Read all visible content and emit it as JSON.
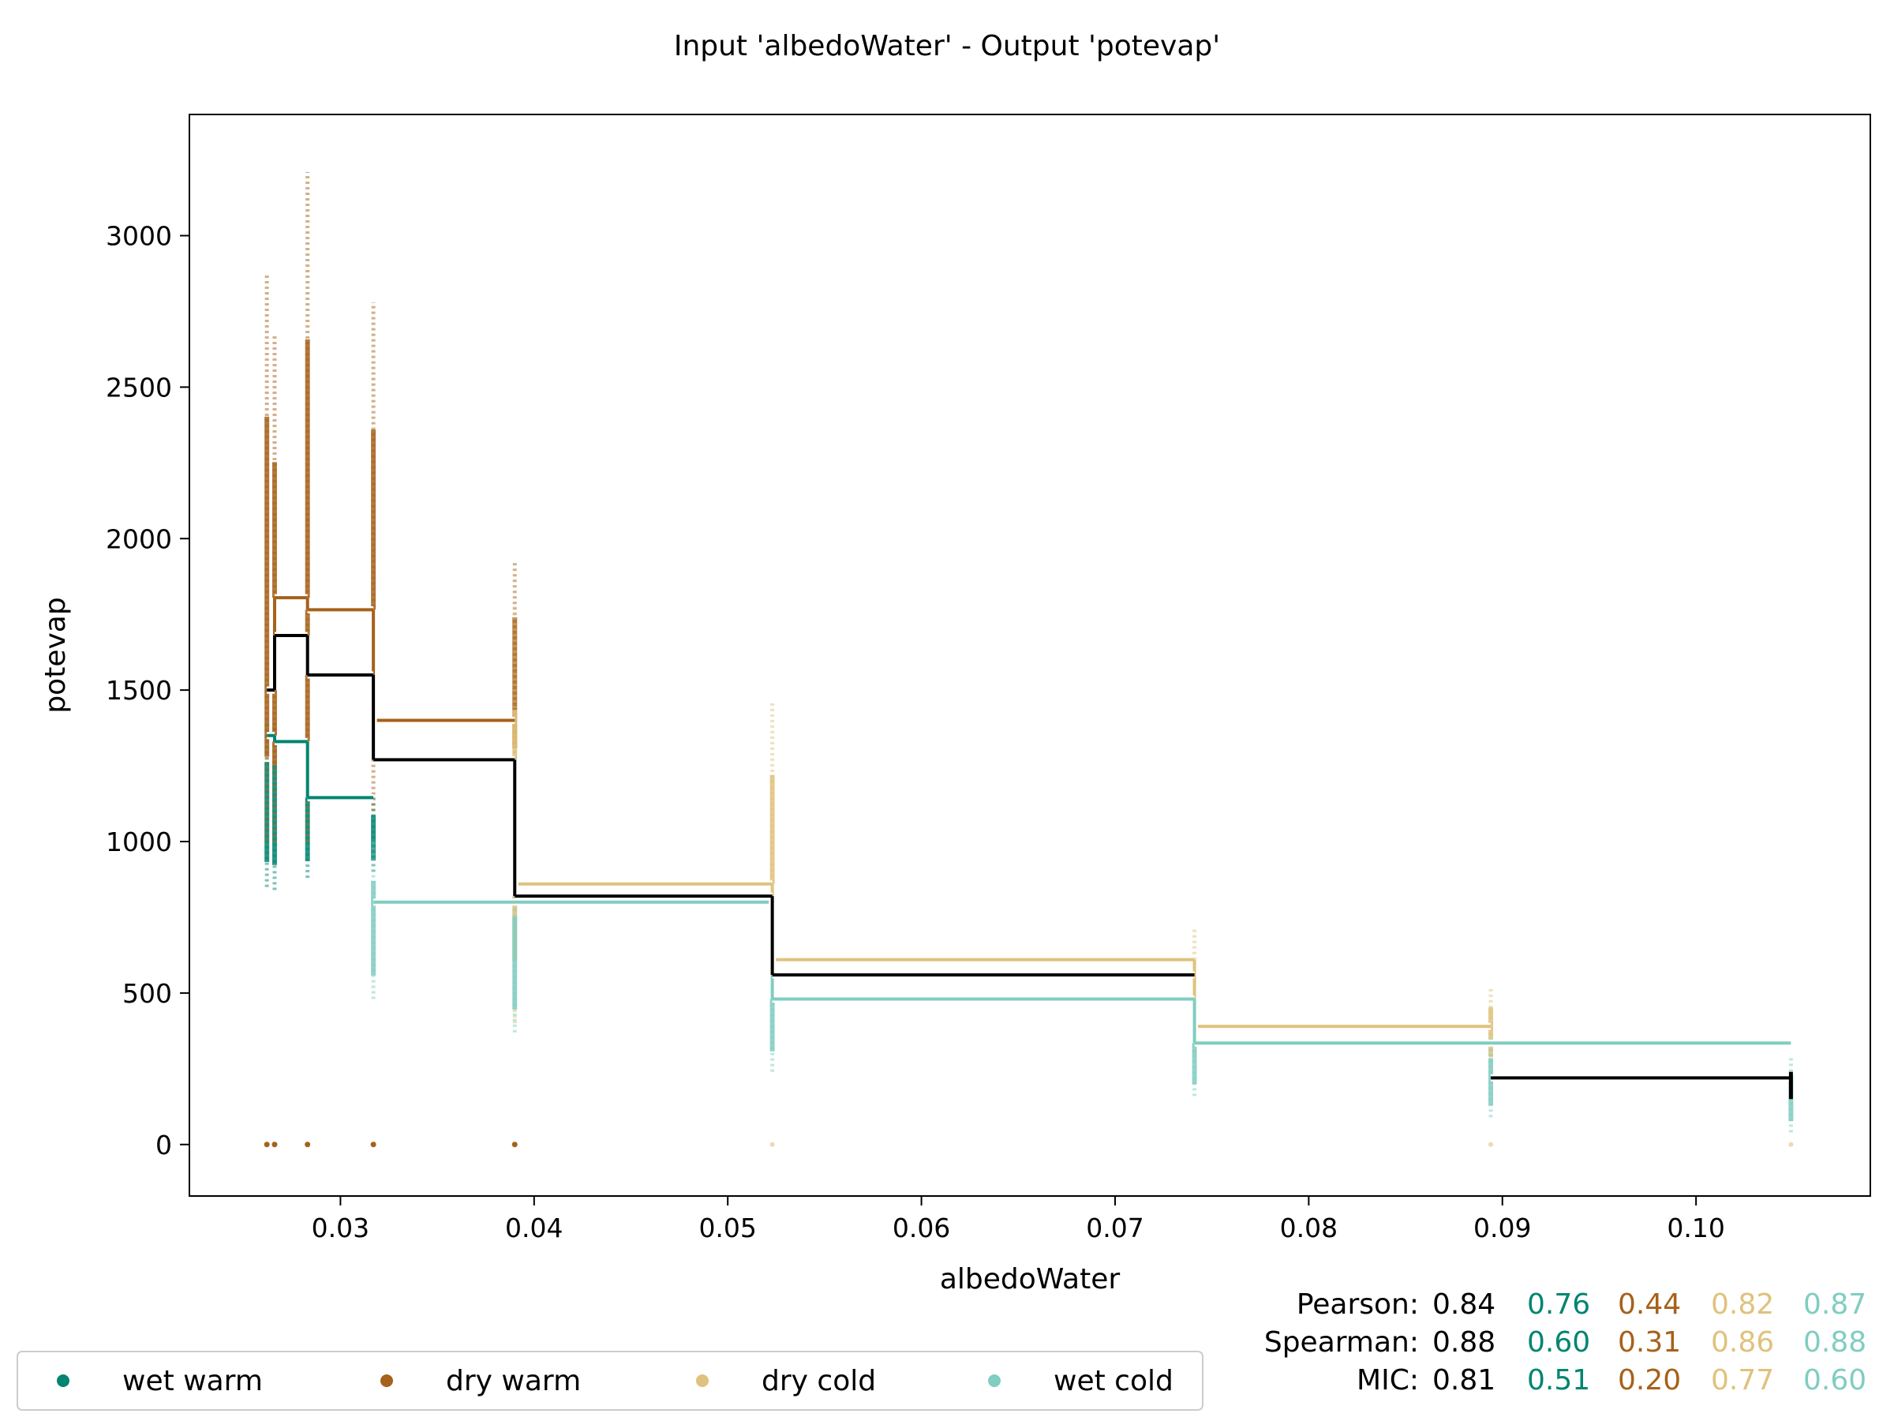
{
  "chart_data": {
    "type": "line",
    "title": "Input 'albedoWater' - Output 'potevap'",
    "xlabel": "albedoWater",
    "ylabel": "potevap",
    "xlim": [
      0.0222,
      0.109
    ],
    "ylim": [
      -170,
      3400
    ],
    "xticks": [
      0.03,
      0.04,
      0.05,
      0.06,
      0.07,
      0.08,
      0.09,
      0.1
    ],
    "xtick_labels": [
      "0.03",
      "0.04",
      "0.05",
      "0.06",
      "0.07",
      "0.08",
      "0.09",
      "0.10"
    ],
    "yticks": [
      0,
      500,
      1000,
      1500,
      2000,
      2500,
      3000
    ],
    "ytick_labels": [
      "0",
      "500",
      "1000",
      "1500",
      "2000",
      "2500",
      "3000"
    ],
    "grid": false,
    "legend_position": "bottom-left",
    "sample_x": [
      0.0262,
      0.0266,
      0.0283,
      0.0317,
      0.039,
      0.0523,
      0.0741,
      0.0894,
      0.1049
    ],
    "steps_all": {
      "x": [
        0.0262,
        0.0266,
        0.0283,
        0.0317,
        0.039,
        0.0523,
        0.0741,
        0.0894,
        0.1049
      ],
      "y": [
        1500,
        1680,
        1550,
        1270,
        820,
        560,
        null,
        220,
        220
      ]
    },
    "series": [
      {
        "name": "wet warm",
        "color": "#018571",
        "step_x": [
          0.0262,
          0.0266,
          0.0283,
          0.0317
        ],
        "step_y": [
          1350,
          1330,
          1145,
          1145
        ],
        "scatter_ranges": [
          [
            850,
            1400
          ],
          [
            840,
            1390
          ],
          [
            880,
            1250
          ],
          [
            900,
            1150
          ]
        ]
      },
      {
        "name": "dry warm",
        "color": "#a6611a",
        "step_x": [
          0.0262,
          0.0266,
          0.0283,
          0.0317,
          0.039
        ],
        "step_y": [
          1500,
          1805,
          1765,
          1400,
          1400
        ],
        "scatter_ranges": [
          [
            1000,
            2870
          ],
          [
            1000,
            2670
          ],
          [
            1000,
            3210
          ],
          [
            1100,
            2780
          ],
          [
            1200,
            1920
          ]
        ],
        "zero_points": [
          0.0262,
          0.0266,
          0.0283,
          0.0317,
          0.039
        ]
      },
      {
        "name": "dry cold",
        "color": "#dfc27d",
        "step_x": [
          0.039,
          0.0523,
          0.0741,
          0.0894
        ],
        "step_y": [
          860,
          610,
          390,
          390
        ],
        "scatter_ranges": [
          [
            400,
            1780
          ],
          [
            500,
            1460
          ],
          [
            300,
            710
          ],
          [
            250,
            520
          ]
        ]
      },
      {
        "name": "wet cold",
        "color": "#80cdc1",
        "step_x": [
          0.0317,
          0.039,
          0.0523,
          0.0741,
          0.0894,
          0.1049
        ],
        "step_y": [
          800,
          800,
          480,
          335,
          335,
          335
        ],
        "scatter_ranges": [
          [
            480,
            1000
          ],
          [
            370,
            880
          ],
          [
            240,
            690
          ],
          [
            160,
            420
          ],
          [
            90,
            350
          ],
          [
            40,
            290
          ]
        ]
      }
    ],
    "stats": {
      "pearson": {
        "label": "Pearson:",
        "all": "0.84",
        "values": [
          "0.76",
          "0.44",
          "0.82",
          "0.87"
        ]
      },
      "spearman": {
        "label": "Spearman:",
        "all": "0.88",
        "values": [
          "0.60",
          "0.31",
          "0.86",
          "0.88"
        ]
      },
      "mic": {
        "label": "MIC:",
        "all": "0.81",
        "values": [
          "0.51",
          "0.20",
          "0.77",
          "0.60"
        ]
      }
    }
  }
}
